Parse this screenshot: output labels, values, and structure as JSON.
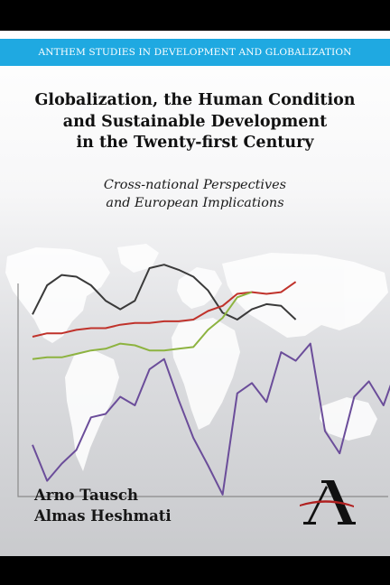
{
  "series": {
    "name": "ANTHEM STUDIES IN DEVELOPMENT AND GLOBALIZATION"
  },
  "book": {
    "title_lines": [
      "Globalization, the Human Condition",
      "and Sustainable Development",
      "in the Twenty-first Century"
    ],
    "subtitle_lines": [
      "Cross-national Perspectives",
      "and European Implications"
    ]
  },
  "authors": [
    "Arno Tausch",
    "Almas Heshmati"
  ],
  "colors": {
    "series_band": "#1fa9e1",
    "frame": "#000000",
    "line_dark": "#3a3a3a",
    "line_red": "#c0322b",
    "line_green": "#8db340",
    "line_purple": "#6b4d9a"
  },
  "icons": {
    "publisher_logo": "anthem-a-logo"
  },
  "decoration": {
    "series": [
      {
        "color": "#3a3a3a",
        "values": [
          43,
          60,
          66,
          65,
          60,
          51,
          46,
          51,
          70,
          72,
          69,
          65,
          57,
          44,
          40,
          46,
          49,
          48,
          40
        ]
      },
      {
        "color": "#c0322b",
        "values": [
          30,
          32,
          32,
          34,
          35,
          35,
          37,
          38,
          38,
          39,
          39,
          40,
          45,
          48,
          55,
          56,
          55,
          56,
          62
        ]
      },
      {
        "color": "#8db340",
        "values": [
          17,
          18,
          18,
          20,
          22,
          23,
          26,
          25,
          22,
          22,
          23,
          24,
          34,
          41,
          53,
          56
        ]
      },
      {
        "color": "#6b4d9a",
        "values": [
          -33,
          -54,
          -44,
          -36,
          -17,
          -15,
          -5,
          -10,
          11,
          17,
          -7,
          -29,
          -45,
          -62,
          -3,
          3,
          -8,
          21,
          16,
          26,
          -25,
          -38,
          -5,
          4,
          -10,
          14
        ]
      }
    ]
  }
}
